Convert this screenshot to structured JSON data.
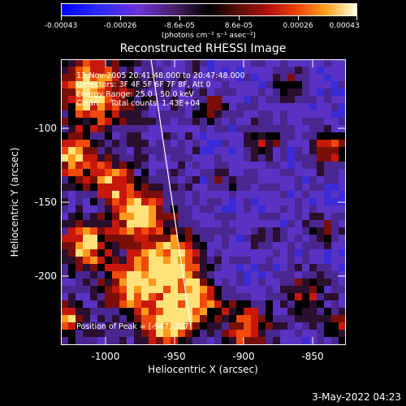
{
  "colorbar": {
    "tick_labels": [
      "-0.00043",
      "-0.00026",
      "-8.6e-05",
      "8.6e-05",
      "0.00026",
      "0.00043"
    ],
    "unit_label": "(photons cm⁻² s⁻¹ asec⁻²)",
    "range": [
      -0.00043,
      0.00043
    ]
  },
  "title": "Reconstructed RHESSI Image",
  "info": {
    "time_range": "13-Nov-2005 20:41:48.000 to 20:47:48.000",
    "detectors": "Detectors: 3F 4F 5F 6F 7F 8F, Att 0",
    "energy": "Energy Range: 25.0 - 50.0 keV",
    "method_counts": "Clean     Total counts: 1.43E+04"
  },
  "peak_label": "Position of Peak = [-947,-207]",
  "axes": {
    "xlabel": "Heliocentric X (arcsec)",
    "ylabel": "Heliocentric Y (arcsec)",
    "xticks": [
      "-1000",
      "-950",
      "-900",
      "-850"
    ],
    "yticks": [
      "-100",
      "-150",
      "-200"
    ]
  },
  "timestamp": "3-May-2022 04:23",
  "colors": {
    "bar_low": "#0000ff",
    "bar_mid": "#000000",
    "bar_high": "#ffffe0"
  }
}
